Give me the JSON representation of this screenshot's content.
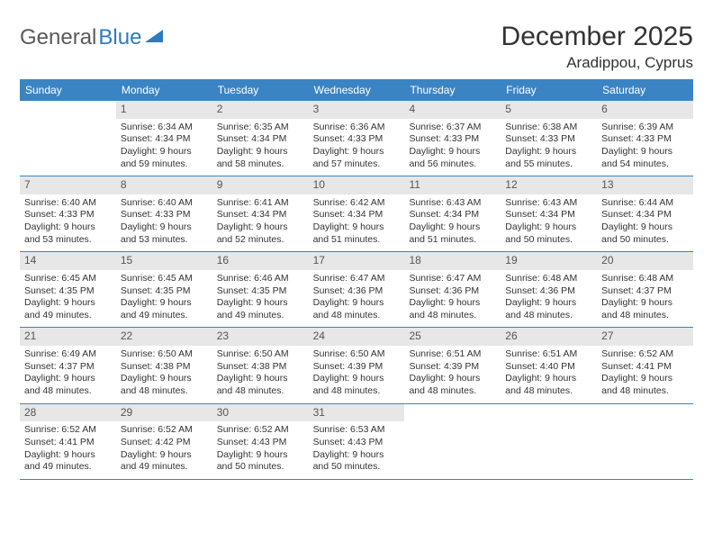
{
  "logo": {
    "text1": "General",
    "text2": "Blue"
  },
  "title": "December 2025",
  "location": "Aradippou, Cyprus",
  "colors": {
    "header_bg": "#3b84c4",
    "header_text": "#ffffff",
    "daynum_bg": "#e7e7e7",
    "daynum_text": "#555555",
    "body_text": "#333333",
    "logo_gray": "#5a5a5a",
    "logo_blue": "#2f7bbf",
    "border": "#3b84c4"
  },
  "day_names": [
    "Sunday",
    "Monday",
    "Tuesday",
    "Wednesday",
    "Thursday",
    "Friday",
    "Saturday"
  ],
  "weeks": [
    [
      {
        "num": "",
        "sunrise": "",
        "sunset": "",
        "daylight": ""
      },
      {
        "num": "1",
        "sunrise": "Sunrise: 6:34 AM",
        "sunset": "Sunset: 4:34 PM",
        "daylight": "Daylight: 9 hours and 59 minutes."
      },
      {
        "num": "2",
        "sunrise": "Sunrise: 6:35 AM",
        "sunset": "Sunset: 4:34 PM",
        "daylight": "Daylight: 9 hours and 58 minutes."
      },
      {
        "num": "3",
        "sunrise": "Sunrise: 6:36 AM",
        "sunset": "Sunset: 4:33 PM",
        "daylight": "Daylight: 9 hours and 57 minutes."
      },
      {
        "num": "4",
        "sunrise": "Sunrise: 6:37 AM",
        "sunset": "Sunset: 4:33 PM",
        "daylight": "Daylight: 9 hours and 56 minutes."
      },
      {
        "num": "5",
        "sunrise": "Sunrise: 6:38 AM",
        "sunset": "Sunset: 4:33 PM",
        "daylight": "Daylight: 9 hours and 55 minutes."
      },
      {
        "num": "6",
        "sunrise": "Sunrise: 6:39 AM",
        "sunset": "Sunset: 4:33 PM",
        "daylight": "Daylight: 9 hours and 54 minutes."
      }
    ],
    [
      {
        "num": "7",
        "sunrise": "Sunrise: 6:40 AM",
        "sunset": "Sunset: 4:33 PM",
        "daylight": "Daylight: 9 hours and 53 minutes."
      },
      {
        "num": "8",
        "sunrise": "Sunrise: 6:40 AM",
        "sunset": "Sunset: 4:33 PM",
        "daylight": "Daylight: 9 hours and 53 minutes."
      },
      {
        "num": "9",
        "sunrise": "Sunrise: 6:41 AM",
        "sunset": "Sunset: 4:34 PM",
        "daylight": "Daylight: 9 hours and 52 minutes."
      },
      {
        "num": "10",
        "sunrise": "Sunrise: 6:42 AM",
        "sunset": "Sunset: 4:34 PM",
        "daylight": "Daylight: 9 hours and 51 minutes."
      },
      {
        "num": "11",
        "sunrise": "Sunrise: 6:43 AM",
        "sunset": "Sunset: 4:34 PM",
        "daylight": "Daylight: 9 hours and 51 minutes."
      },
      {
        "num": "12",
        "sunrise": "Sunrise: 6:43 AM",
        "sunset": "Sunset: 4:34 PM",
        "daylight": "Daylight: 9 hours and 50 minutes."
      },
      {
        "num": "13",
        "sunrise": "Sunrise: 6:44 AM",
        "sunset": "Sunset: 4:34 PM",
        "daylight": "Daylight: 9 hours and 50 minutes."
      }
    ],
    [
      {
        "num": "14",
        "sunrise": "Sunrise: 6:45 AM",
        "sunset": "Sunset: 4:35 PM",
        "daylight": "Daylight: 9 hours and 49 minutes."
      },
      {
        "num": "15",
        "sunrise": "Sunrise: 6:45 AM",
        "sunset": "Sunset: 4:35 PM",
        "daylight": "Daylight: 9 hours and 49 minutes."
      },
      {
        "num": "16",
        "sunrise": "Sunrise: 6:46 AM",
        "sunset": "Sunset: 4:35 PM",
        "daylight": "Daylight: 9 hours and 49 minutes."
      },
      {
        "num": "17",
        "sunrise": "Sunrise: 6:47 AM",
        "sunset": "Sunset: 4:36 PM",
        "daylight": "Daylight: 9 hours and 48 minutes."
      },
      {
        "num": "18",
        "sunrise": "Sunrise: 6:47 AM",
        "sunset": "Sunset: 4:36 PM",
        "daylight": "Daylight: 9 hours and 48 minutes."
      },
      {
        "num": "19",
        "sunrise": "Sunrise: 6:48 AM",
        "sunset": "Sunset: 4:36 PM",
        "daylight": "Daylight: 9 hours and 48 minutes."
      },
      {
        "num": "20",
        "sunrise": "Sunrise: 6:48 AM",
        "sunset": "Sunset: 4:37 PM",
        "daylight": "Daylight: 9 hours and 48 minutes."
      }
    ],
    [
      {
        "num": "21",
        "sunrise": "Sunrise: 6:49 AM",
        "sunset": "Sunset: 4:37 PM",
        "daylight": "Daylight: 9 hours and 48 minutes."
      },
      {
        "num": "22",
        "sunrise": "Sunrise: 6:50 AM",
        "sunset": "Sunset: 4:38 PM",
        "daylight": "Daylight: 9 hours and 48 minutes."
      },
      {
        "num": "23",
        "sunrise": "Sunrise: 6:50 AM",
        "sunset": "Sunset: 4:38 PM",
        "daylight": "Daylight: 9 hours and 48 minutes."
      },
      {
        "num": "24",
        "sunrise": "Sunrise: 6:50 AM",
        "sunset": "Sunset: 4:39 PM",
        "daylight": "Daylight: 9 hours and 48 minutes."
      },
      {
        "num": "25",
        "sunrise": "Sunrise: 6:51 AM",
        "sunset": "Sunset: 4:39 PM",
        "daylight": "Daylight: 9 hours and 48 minutes."
      },
      {
        "num": "26",
        "sunrise": "Sunrise: 6:51 AM",
        "sunset": "Sunset: 4:40 PM",
        "daylight": "Daylight: 9 hours and 48 minutes."
      },
      {
        "num": "27",
        "sunrise": "Sunrise: 6:52 AM",
        "sunset": "Sunset: 4:41 PM",
        "daylight": "Daylight: 9 hours and 48 minutes."
      }
    ],
    [
      {
        "num": "28",
        "sunrise": "Sunrise: 6:52 AM",
        "sunset": "Sunset: 4:41 PM",
        "daylight": "Daylight: 9 hours and 49 minutes."
      },
      {
        "num": "29",
        "sunrise": "Sunrise: 6:52 AM",
        "sunset": "Sunset: 4:42 PM",
        "daylight": "Daylight: 9 hours and 49 minutes."
      },
      {
        "num": "30",
        "sunrise": "Sunrise: 6:52 AM",
        "sunset": "Sunset: 4:43 PM",
        "daylight": "Daylight: 9 hours and 50 minutes."
      },
      {
        "num": "31",
        "sunrise": "Sunrise: 6:53 AM",
        "sunset": "Sunset: 4:43 PM",
        "daylight": "Daylight: 9 hours and 50 minutes."
      },
      {
        "num": "",
        "sunrise": "",
        "sunset": "",
        "daylight": ""
      },
      {
        "num": "",
        "sunrise": "",
        "sunset": "",
        "daylight": ""
      },
      {
        "num": "",
        "sunrise": "",
        "sunset": "",
        "daylight": ""
      }
    ]
  ]
}
